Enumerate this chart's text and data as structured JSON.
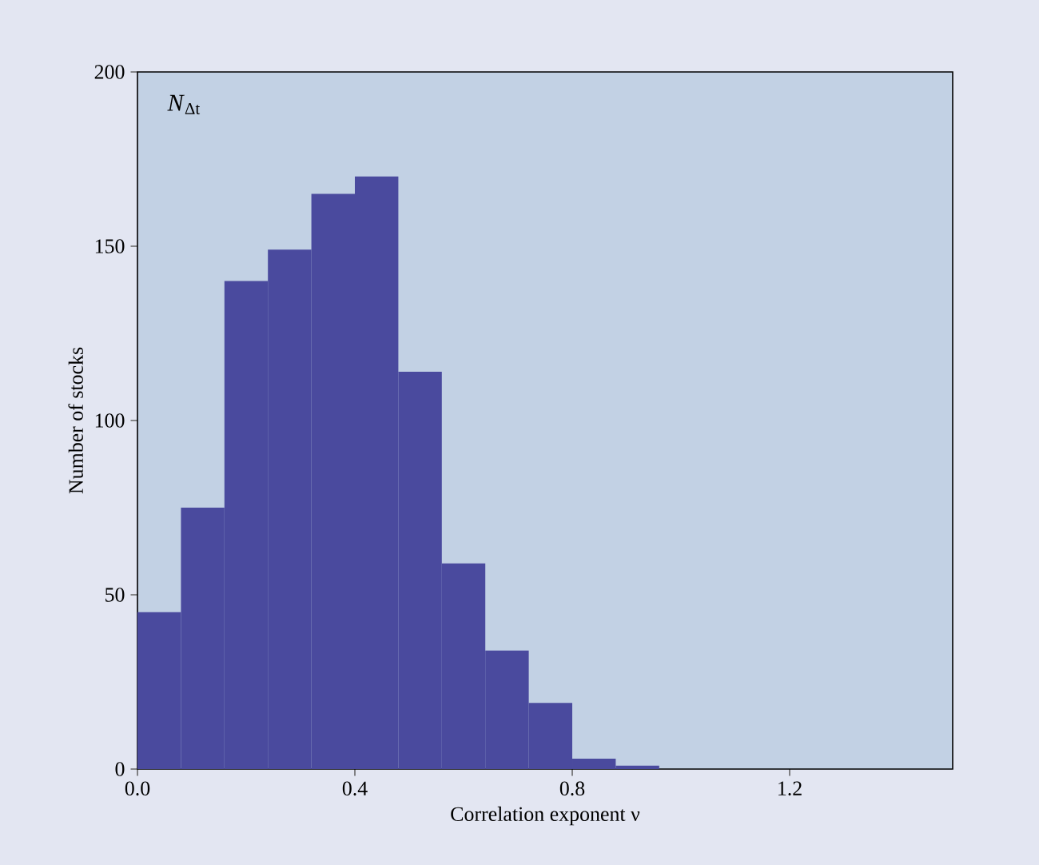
{
  "chart_data": {
    "type": "histogram",
    "xlabel": "Correlation exponent ν",
    "ylabel": "Number of stocks",
    "bins": [
      0,
      0.08,
      0.16,
      0.24,
      0.32,
      0.4,
      0.48,
      0.56,
      0.64,
      0.72,
      0.8,
      0.88,
      0.96
    ],
    "values": [
      45,
      75,
      140,
      149,
      165,
      170,
      114,
      59,
      34,
      19,
      3,
      1
    ],
    "color": "#4a4a9e",
    "xlim": [
      0,
      1.5
    ],
    "xticks": [
      {
        "value": 0,
        "label": "0.0"
      },
      0.4,
      0.8,
      1.2
    ],
    "ylim": [
      0,
      200
    ],
    "yticks": [
      0,
      50,
      100,
      150,
      200
    ],
    "annotations": [
      "*N*$_{Δt}$"
    ]
  }
}
